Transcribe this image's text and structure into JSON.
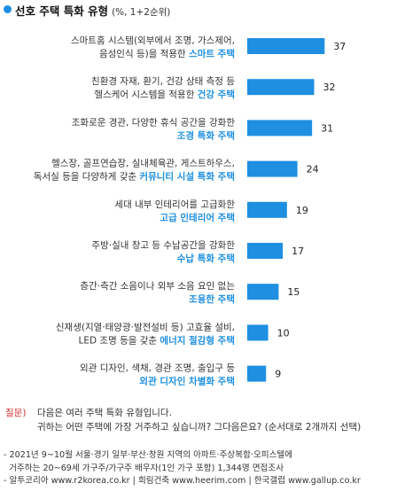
{
  "header": {
    "title": "선호 주택 특화 유형",
    "subtitle": "(%, 1+2순위)"
  },
  "colors": {
    "bar": "#1e8fe1",
    "highlight": "#1e8fe1",
    "bullet": "#1e8fe1",
    "question_tag": "#d0312d"
  },
  "chart_data": {
    "type": "bar",
    "orientation": "horizontal",
    "unit": "%",
    "categories": [
      {
        "lines": [
          {
            "plain": "스마트홈 시스템(외부에서 조명, 가스제어,"
          },
          {
            "plain": "음성인식 등)을 적용한 ",
            "hl": "스마트 주택"
          }
        ]
      },
      {
        "lines": [
          {
            "plain": "친환경 자재, 환기, 건강 상태 측정 등"
          },
          {
            "plain": "헬스케어 시스템을 적용한 ",
            "hl": "건강 주택"
          }
        ]
      },
      {
        "lines": [
          {
            "plain": "조화로운 경관, 다양한 휴식 공간을 강화한"
          },
          {
            "plain": "",
            "hl": "조경 특화 주택"
          }
        ]
      },
      {
        "lines": [
          {
            "plain": "헬스장, 골프연습장, 실내체육관, 게스트하우스,"
          },
          {
            "plain": "독서실 등을 다양하게 갖춘 ",
            "hl": "커뮤니티 시설 특화 주택"
          }
        ]
      },
      {
        "lines": [
          {
            "plain": "세대 내부 인테리어를 고급화한"
          },
          {
            "plain": "",
            "hl": "고급 인테리어 주택"
          }
        ]
      },
      {
        "lines": [
          {
            "plain": "주방·실내 창고 등 수납공간을 강화한"
          },
          {
            "plain": "",
            "hl": "수납 특화 주택"
          }
        ]
      },
      {
        "lines": [
          {
            "plain": "층간·측간 소음이나 외부 소음 요인 없는"
          },
          {
            "plain": "",
            "hl": "조용한 주택"
          }
        ]
      },
      {
        "lines": [
          {
            "plain": "신재생(지열·태양광·발전설비 등) 고효율 설비,"
          },
          {
            "plain": "LED 조명 등을 갖춘 ",
            "hl": "에너지 절감형 주택"
          }
        ]
      },
      {
        "lines": [
          {
            "plain": "외관 디자인, 색채, 경관 조명, 출입구 등"
          },
          {
            "plain": "",
            "hl": "외관 디자인 차별화 주택"
          }
        ]
      }
    ],
    "values": [
      37,
      32,
      31,
      24,
      19,
      17,
      15,
      10,
      9
    ],
    "xlim": [
      0,
      40
    ]
  },
  "question": {
    "tag": "질문)",
    "line1": "다음은 여러 주택 특화 유형입니다.",
    "line2": "귀하는 어떤 주택에 가장 거주하고 싶습니까? 그다음은요? (순서대로 2개까지 선택)"
  },
  "notes": {
    "line1": "- 2021년 9~10월 서울·경기 일부·부산·창원 지역의 아파트·주상복합·오피스텔에",
    "line2": "  거주하는 20~69세 가구주/가구주 배우자(1인 가구 포함) 1,344명 면접조사",
    "line3": "- 알투코리아 www.r2korea.co.kr | 희림건축 www.heerim.com | 한국갤럽 www.gallup.co.kr"
  }
}
